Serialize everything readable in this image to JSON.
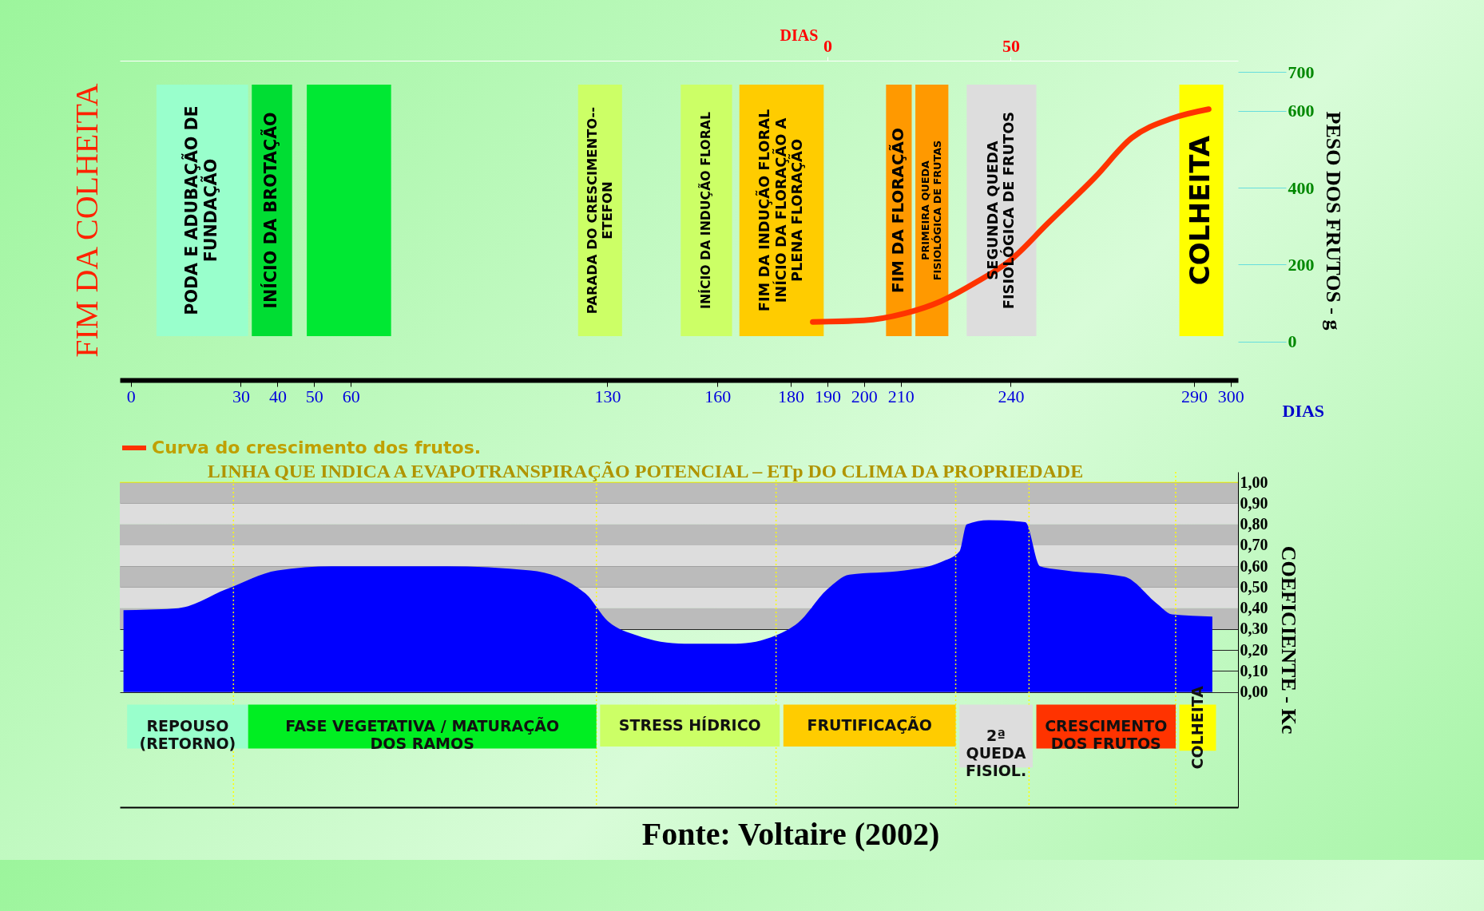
{
  "chart_data": [
    {
      "type": "line",
      "xlabel": "DIAS",
      "ylabel": "PESO DOS FRUTOS - g",
      "x2label": "DIAS",
      "xlim": [
        -3,
        302
      ],
      "xticks": [
        0,
        30,
        40,
        50,
        60,
        130,
        160,
        180,
        190,
        200,
        210,
        240,
        290,
        300
      ],
      "x2lim": [
        -193,
        112
      ],
      "x2ticks": [
        0,
        50
      ],
      "ylim": [
        -100,
        730
      ],
      "yticks": [
        0,
        200,
        400,
        600,
        700
      ],
      "legend": "bottom left",
      "series": [
        {
          "name": "Curva do crescimento dos frutos.",
          "color": "#ff3300",
          "x": [
            186,
            200,
            211,
            221,
            230,
            240,
            250,
            263,
            273,
            284,
            294
          ],
          "values": [
            51,
            55,
            73,
            105,
            151,
            212,
            306,
            427,
            529,
            580,
            604
          ]
        }
      ],
      "bands": [
        {
          "axis": "x",
          "from": 7,
          "to": 32,
          "label": "PODA E ADUBAÇÃO DE\nFUNDAÇÃO",
          "color": "#99ffcc"
        },
        {
          "axis": "x",
          "from": 33,
          "to": 44,
          "label": "INÍCIO DA BROTAÇÃO",
          "color": "#00dd33"
        },
        {
          "axis": "x",
          "from": 48,
          "to": 71,
          "label": null,
          "color": "#00e833"
        },
        {
          "axis": "x",
          "from": 122,
          "to": 134,
          "label": "PARADA DO CRESCIMENTO--\nETEFON",
          "color": "#ccff66"
        },
        {
          "axis": "x",
          "from": 150,
          "to": 164,
          "label": "INÍCIO DA INDUÇÃO FLORAL",
          "color": "#ccff66"
        },
        {
          "axis": "x",
          "from": 166,
          "to": 189,
          "label": "FIM DA INDUÇÃO FLORAL\nINÍCIO DA FLORAÇÃO A\nPLENA FLORAÇÃO",
          "color": "#ffcc00"
        },
        {
          "axis": "x",
          "from": 206,
          "to": 213,
          "label": "FIM DA FLORAÇÃO",
          "color": "#ff9900"
        },
        {
          "axis": "x",
          "from": 214,
          "to": 223,
          "label": "PRIMEIRA QUEDA\nFISIOLÓGICA DE FRUTAS",
          "color": "#ff9900"
        },
        {
          "axis": "x",
          "from": 228,
          "to": 247,
          "label": "SEGUNDA QUEDA\nFISIOLÓGICA DE FRUTOS",
          "color": "#dddddd"
        },
        {
          "axis": "x",
          "from": 286,
          "to": 298,
          "label": "COLHEITA",
          "color": "#ffff00"
        }
      ],
      "annotations": [
        "FIM DA COLHEITA"
      ]
    },
    {
      "type": "area",
      "ylabel": "COEFICIENTE - Kc",
      "xlim": [
        -3,
        302
      ],
      "ylim": [
        -0.55,
        1.05
      ],
      "tick_labels": "y",
      "grid": "y",
      "yticks": [
        {
          "value": 0,
          "label": "0,00"
        },
        {
          "value": 0.1,
          "label": "0,10"
        },
        {
          "value": 0.2,
          "label": "0,20"
        },
        {
          "value": 0.3,
          "label": "0,30"
        },
        {
          "value": 0.4,
          "label": "0,40"
        },
        {
          "value": 0.5,
          "label": "0,50"
        },
        {
          "value": 0.6,
          "label": "0,60"
        },
        {
          "value": 0.7,
          "label": "0,70"
        },
        {
          "value": 0.8,
          "label": "0,80"
        },
        {
          "value": 0.9,
          "label": "0,90"
        },
        {
          "value": 1,
          "label": "1,00"
        }
      ],
      "series": [
        {
          "color": "#0000ff",
          "x": [
            -2,
            13,
            26,
            40,
            55,
            86,
            109,
            124,
            130,
            138,
            151,
            165,
            176,
            182,
            190,
            196,
            211,
            221,
            226,
            228,
            234,
            244,
            248,
            255,
            271,
            280,
            284,
            295
          ],
          "values": [
            0.39,
            0.4,
            0.49,
            0.58,
            0.6,
            0.6,
            0.58,
            0.47,
            0.34,
            0.27,
            0.23,
            0.23,
            0.27,
            0.33,
            0.49,
            0.56,
            0.58,
            0.62,
            0.67,
            0.8,
            0.82,
            0.81,
            0.6,
            0.58,
            0.55,
            0.42,
            0.37,
            0.36
          ]
        }
      ],
      "bands": [
        {
          "axis": "y",
          "from": 0.9,
          "to": 1.0,
          "color": "#bbbbbb"
        },
        {
          "axis": "y",
          "from": 0.8,
          "to": 0.9,
          "color": "#dddddd"
        },
        {
          "axis": "y",
          "from": 0.7,
          "to": 0.8,
          "color": "#bbbbbb"
        },
        {
          "axis": "y",
          "from": 0.6,
          "to": 0.7,
          "color": "#dddddd"
        },
        {
          "axis": "y",
          "from": 0.5,
          "to": 0.6,
          "color": "#bbbbbb"
        },
        {
          "axis": "y",
          "from": 0.4,
          "to": 0.5,
          "color": "#dddddd"
        },
        {
          "axis": "y",
          "from": 0.3,
          "to": 0.4,
          "color": "#bbbbbb"
        },
        {
          "axis": "x",
          "from": -1,
          "to": 32,
          "label": "REPOUSO\n(RETORNO)",
          "color": "#99ffcc"
        },
        {
          "axis": "x",
          "from": 32,
          "to": 127,
          "label": "FASE VEGETATIVA / MATURAÇÃO\nDOS RAMOS",
          "color": "#00ee22"
        },
        {
          "axis": "x",
          "from": 128,
          "to": 177,
          "label": "STRESS HÍDRICO",
          "color": "#ccff66"
        },
        {
          "axis": "x",
          "from": 178,
          "to": 225,
          "label": "FRUTIFICAÇÃO",
          "color": "#ffcc00"
        },
        {
          "axis": "x",
          "from": 226,
          "to": 246,
          "label": "2ª\nQUEDA\nFISIOL.",
          "color": "#dddddd"
        },
        {
          "axis": "x",
          "from": 247,
          "to": 285,
          "label": "CRESCIMENTO\nDOS FRUTOS",
          "color": "#ff3300"
        },
        {
          "axis": "x",
          "from": 286,
          "to": 296,
          "label": "COLHEITA",
          "color": "#ffff00"
        }
      ],
      "ref_lines": [
        {
          "axis": "y",
          "value": 1,
          "label": "LINHA QUE INDICA A EVAPOTRANSPIRAÇÃO POTENCIAL – ETp DO CLIMA DA PROPRIEDADE",
          "color": "#ffff00"
        },
        {
          "axis": "x",
          "value": 28,
          "color": "#ffff00",
          "line_style": "dotted"
        },
        {
          "axis": "x",
          "value": 127,
          "color": "#ffff00",
          "line_style": "dotted"
        },
        {
          "axis": "x",
          "value": 176,
          "color": "#ffff00",
          "line_style": "dotted"
        },
        {
          "axis": "x",
          "value": 225,
          "color": "#ffff00",
          "line_style": "dotted"
        },
        {
          "axis": "x",
          "value": 245,
          "color": "#ffff00",
          "line_style": "dotted"
        },
        {
          "axis": "x",
          "value": 285,
          "color": "#ffff00",
          "line_style": "dotted"
        }
      ],
      "annotations": [
        "Fonte: Voltaire (2002)"
      ]
    }
  ]
}
